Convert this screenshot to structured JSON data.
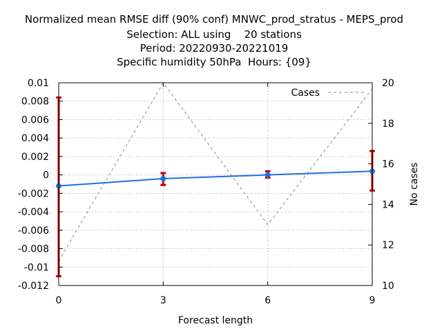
{
  "title_lines": [
    "Normalized mean RMSE diff (90% conf) MNWC_prod_stratus - MEPS_prod",
    "Selection: ALL using    20 stations",
    "Period: 20220930-20221019",
    "Specific humidity 50hPa  Hours: {09}"
  ],
  "chart_data": {
    "type": "line",
    "title": "Normalized mean RMSE diff (90% conf) MNWC_prod_stratus - MEPS_prod",
    "xlabel": "Forecast length",
    "ylabel": "",
    "y2label": "No cases",
    "x": [
      0,
      3,
      6,
      9
    ],
    "xlim": [
      0,
      9
    ],
    "ylim": [
      -0.012,
      0.01
    ],
    "y2lim": [
      10,
      20
    ],
    "x_ticks": [
      "0",
      "3",
      "6",
      "9"
    ],
    "y_ticks": [
      "0.01",
      "0.008",
      "0.006",
      "0.004",
      "0.002",
      "0",
      "-0.002",
      "-0.004",
      "-0.006",
      "-0.008",
      "-0.01",
      "-0.012"
    ],
    "y2_ticks": [
      "20",
      "18",
      "16",
      "14",
      "12",
      "10"
    ],
    "grid": true,
    "legend_position": "top-right",
    "series": [
      {
        "values": [
          -0.0012,
          -0.0004,
          0.0,
          0.0004
        ],
        "color": "#1f6fe0",
        "error_low": [
          -0.011,
          -0.0011,
          -0.0003,
          -0.0017
        ],
        "error_high": [
          0.0084,
          0.0002,
          0.0004,
          0.0026
        ],
        "error_color": "#cc0000",
        "axis": "left"
      },
      {
        "name": "Cases",
        "values": [
          11.2,
          20.0,
          13.0,
          19.7
        ],
        "color": "#888888",
        "dash": true,
        "axis": "right"
      }
    ]
  }
}
